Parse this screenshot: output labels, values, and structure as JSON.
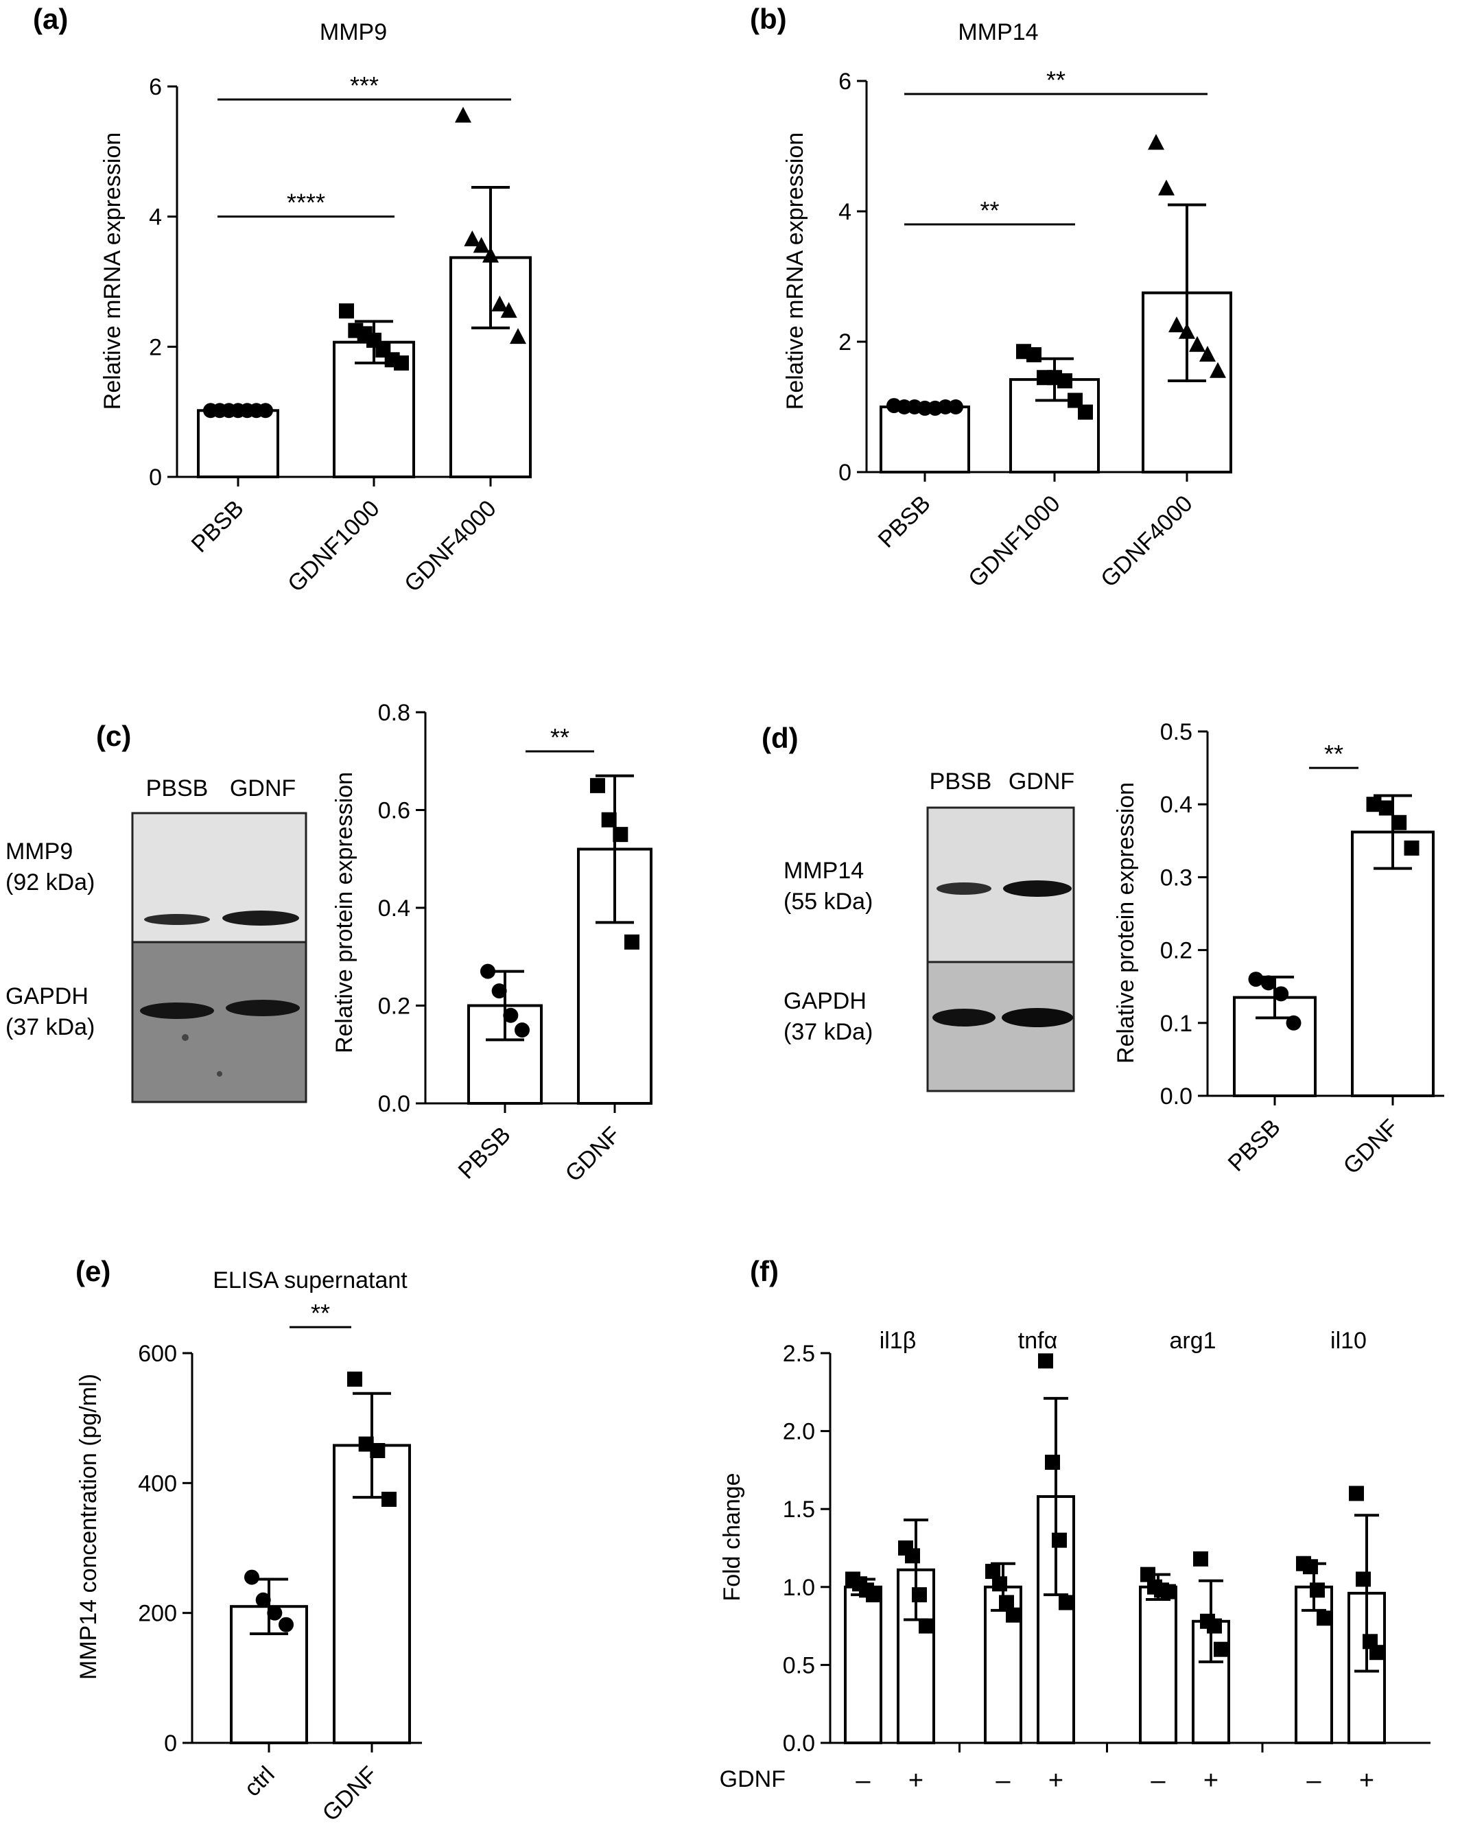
{
  "panels": {
    "a": {
      "label": "(a)",
      "chart_data": {
        "type": "bar",
        "title": "MMP9",
        "ylabel": "Relative mRNA expression",
        "xlabel": "",
        "ylim": [
          0,
          6
        ],
        "yticks": [
          0,
          2,
          4,
          6
        ],
        "categories": [
          "PBSB",
          "GDNF1000",
          "GDNF4000"
        ],
        "values": [
          1.02,
          2.07,
          3.37
        ],
        "errors": [
          0.03,
          0.32,
          1.08
        ],
        "marker": [
          "circle",
          "square",
          "triangle"
        ],
        "points": [
          [
            1.02,
            1.02,
            1.02,
            1.02,
            1.02,
            1.02,
            1.02
          ],
          [
            2.55,
            2.25,
            2.2,
            2.1,
            1.95,
            1.8,
            1.75
          ],
          [
            5.55,
            3.65,
            3.55,
            3.4,
            2.65,
            2.55,
            2.15
          ]
        ],
        "significance": [
          {
            "from": 0,
            "to": 1,
            "label": "****",
            "y": 4.0
          },
          {
            "from": 0,
            "to": 2,
            "label": "***",
            "y": 5.8
          }
        ]
      }
    },
    "b": {
      "label": "(b)",
      "chart_data": {
        "type": "bar",
        "title": "MMP14",
        "ylabel": "Relative mRNA expression",
        "xlabel": "",
        "ylim": [
          0,
          6
        ],
        "yticks": [
          0,
          2,
          4,
          6
        ],
        "categories": [
          "PBSB",
          "GDNF1000",
          "GDNF4000"
        ],
        "values": [
          1.0,
          1.42,
          2.75
        ],
        "errors": [
          0.03,
          0.32,
          1.35
        ],
        "marker": [
          "circle",
          "square",
          "triangle"
        ],
        "points": [
          [
            1.02,
            1.0,
            1.0,
            0.98,
            0.98,
            1.0,
            1.0
          ],
          [
            1.85,
            1.8,
            1.45,
            1.45,
            1.4,
            1.1,
            0.92
          ],
          [
            5.05,
            4.35,
            2.25,
            2.15,
            1.95,
            1.8,
            1.55
          ]
        ],
        "significance": [
          {
            "from": 0,
            "to": 1,
            "label": "**",
            "y": 3.8
          },
          {
            "from": 0,
            "to": 2,
            "label": "**",
            "y": 5.8
          }
        ]
      }
    },
    "c": {
      "label": "(c)",
      "blot": {
        "lanes": [
          "PBSB",
          "GDNF"
        ],
        "rows": [
          {
            "name": "MMP9",
            "kda": "(92 kDa)"
          },
          {
            "name": "GAPDH",
            "kda": "(37 kDa)"
          }
        ]
      },
      "chart_data": {
        "type": "bar",
        "title": "",
        "ylabel": "Relative protein expression",
        "xlabel": "",
        "ylim": [
          0,
          0.8
        ],
        "yticks": [
          0.0,
          0.2,
          0.4,
          0.6,
          0.8
        ],
        "categories": [
          "PBSB",
          "GDNF"
        ],
        "values": [
          0.2,
          0.52
        ],
        "errors": [
          0.07,
          0.15
        ],
        "marker": [
          "circle",
          "square"
        ],
        "points": [
          [
            0.27,
            0.23,
            0.18,
            0.15
          ],
          [
            0.65,
            0.58,
            0.55,
            0.33
          ]
        ],
        "significance": [
          {
            "from": 0,
            "to": 1,
            "label": "**",
            "y": 0.72
          }
        ]
      }
    },
    "d": {
      "label": "(d)",
      "blot": {
        "lanes": [
          "PBSB",
          "GDNF"
        ],
        "rows": [
          {
            "name": "MMP14",
            "kda": "(55 kDa)"
          },
          {
            "name": "GAPDH",
            "kda": "(37 kDa)"
          }
        ]
      },
      "chart_data": {
        "type": "bar",
        "title": "",
        "ylabel": "Relative protein expression",
        "xlabel": "",
        "ylim": [
          0,
          0.5
        ],
        "yticks": [
          0.0,
          0.1,
          0.2,
          0.3,
          0.4,
          0.5
        ],
        "categories": [
          "PBSB",
          "GDNF"
        ],
        "values": [
          0.135,
          0.362
        ],
        "errors": [
          0.028,
          0.05
        ],
        "marker": [
          "circle",
          "square"
        ],
        "points": [
          [
            0.16,
            0.155,
            0.14,
            0.1
          ],
          [
            0.4,
            0.395,
            0.375,
            0.34
          ]
        ],
        "significance": [
          {
            "from": 0,
            "to": 1,
            "label": "**",
            "y": 0.45
          }
        ]
      }
    },
    "e": {
      "label": "(e)",
      "chart_data": {
        "type": "bar",
        "title": "ELISA supernatant",
        "ylabel": "MMP14 concentration (pg/ml)",
        "xlabel": "",
        "ylim": [
          0,
          600
        ],
        "yticks": [
          0,
          200,
          400,
          600
        ],
        "categories": [
          "ctrl",
          "GDNF"
        ],
        "values": [
          210,
          458
        ],
        "errors": [
          42,
          80
        ],
        "marker": [
          "circle",
          "square"
        ],
        "points": [
          [
            255,
            220,
            200,
            182
          ],
          [
            560,
            460,
            450,
            375
          ]
        ],
        "significance": [
          {
            "from": 0,
            "to": 1,
            "label": "**",
            "y": 640
          }
        ]
      }
    },
    "f": {
      "label": "(f)",
      "chart_data": {
        "type": "bar",
        "title": "",
        "ylabel": "Fold change",
        "xlabel": "",
        "ylim": [
          0,
          2.5
        ],
        "yticks": [
          "0.0",
          "0.5",
          "1.0",
          "1.5",
          "2.0",
          "2.5"
        ],
        "groups": [
          "il1β",
          "tnfα",
          "arg1",
          "il10"
        ],
        "condition_label": "GDNF",
        "conditions": [
          "–",
          "+"
        ],
        "series": [
          {
            "values": [
              1.0,
              1.0,
              1.0,
              1.0
            ],
            "errors": [
              0.05,
              0.15,
              0.08,
              0.15
            ]
          },
          {
            "values": [
              1.11,
              1.58,
              0.78,
              0.96
            ],
            "errors": [
              0.32,
              0.63,
              0.26,
              0.5
            ]
          }
        ],
        "points": [
          [
            [
              1.05,
              1.02,
              0.98,
              0.95
            ],
            [
              1.25,
              1.2,
              0.95,
              0.75
            ]
          ],
          [
            [
              1.1,
              1.02,
              0.9,
              0.82
            ],
            [
              2.45,
              1.8,
              1.3,
              0.9
            ]
          ],
          [
            [
              1.08,
              1.0,
              0.98,
              0.97
            ],
            [
              1.18,
              0.78,
              0.75,
              0.6
            ]
          ],
          [
            [
              1.15,
              1.13,
              0.98,
              0.8
            ],
            [
              1.6,
              1.05,
              0.65,
              0.58
            ]
          ]
        ]
      }
    }
  }
}
